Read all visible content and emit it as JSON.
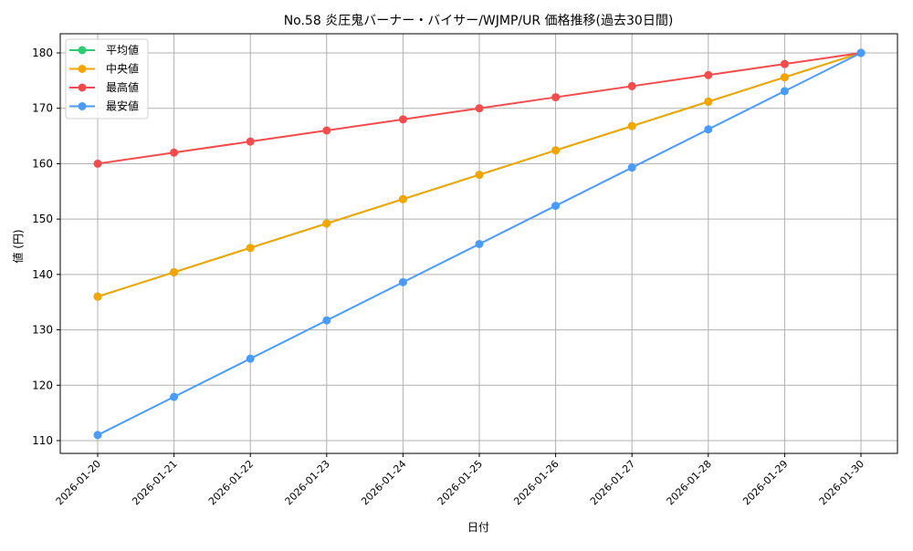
{
  "chart_data": {
    "type": "line",
    "title": "No.58 炎圧鬼バーナー・バイサー/WJMP/UR 価格推移(過去30日間)",
    "xlabel": "日付",
    "ylabel": "値 (円)",
    "ylim": [
      107.5,
      183.5
    ],
    "yticks": [
      110,
      120,
      130,
      140,
      150,
      160,
      170,
      180
    ],
    "grid": true,
    "legend_position": "upper left",
    "x": [
      "2026-01-20",
      "2026-01-21",
      "2026-01-22",
      "2026-01-23",
      "2026-01-24",
      "2026-01-25",
      "2026-01-26",
      "2026-01-27",
      "2026-01-28",
      "2026-01-29",
      "2026-01-30"
    ],
    "series": [
      {
        "name": "平均値",
        "color": "#2ecc71",
        "values": [
          136,
          140.4,
          144.8,
          149.2,
          153.6,
          158,
          162.4,
          166.8,
          171.2,
          175.6,
          180
        ]
      },
      {
        "name": "中央値",
        "color": "#f5a500",
        "values": [
          136,
          140.4,
          144.8,
          149.2,
          153.6,
          158,
          162.4,
          166.8,
          171.2,
          175.6,
          180
        ]
      },
      {
        "name": "最高値",
        "color": "#f44c4c",
        "values": [
          160,
          162,
          164,
          166,
          168,
          170,
          172,
          174,
          176,
          178,
          180
        ]
      },
      {
        "name": "最安値",
        "color": "#4a9bff",
        "values": [
          111,
          117.9,
          124.8,
          131.7,
          138.6,
          145.5,
          152.4,
          159.3,
          166.2,
          173.1,
          180
        ]
      }
    ]
  }
}
